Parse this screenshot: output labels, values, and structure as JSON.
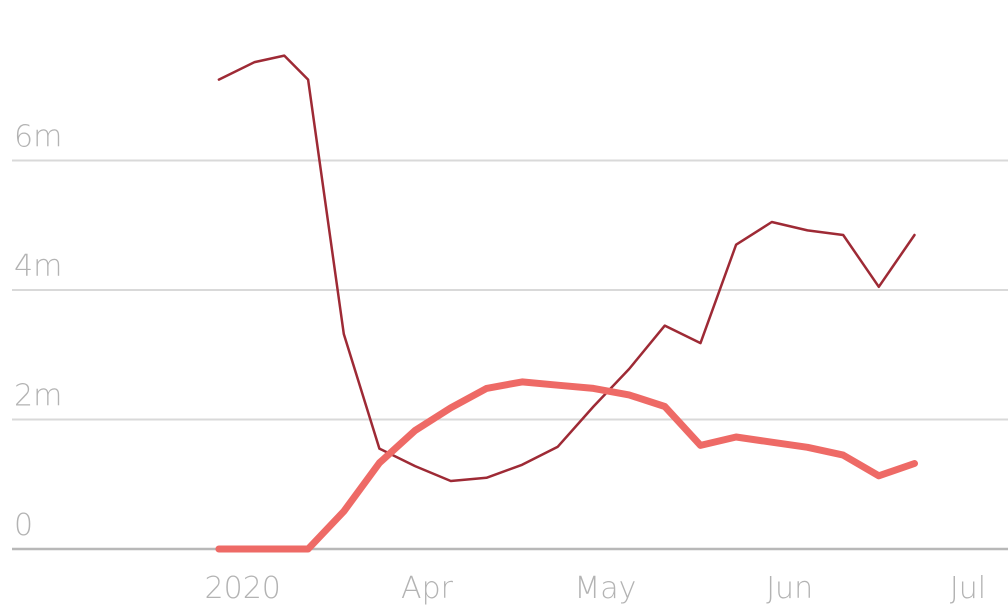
{
  "chart_data": {
    "type": "line",
    "title": "",
    "xlabel": "",
    "ylabel": "",
    "x_ticks": [
      {
        "label": "2020",
        "date": "2020-03-01"
      },
      {
        "label": "Apr",
        "date": "2020-04-01"
      },
      {
        "label": "May",
        "date": "2020-05-01"
      },
      {
        "label": "Jun",
        "date": "2020-06-01"
      },
      {
        "label": "Jul",
        "date": "2020-07-01"
      }
    ],
    "y_ticks": [
      {
        "label": "0",
        "value": 0
      },
      {
        "label": "2m",
        "value": 2000000
      },
      {
        "label": "4m",
        "value": 4000000
      },
      {
        "label": "6m",
        "value": 6000000
      }
    ],
    "ylim": [
      0,
      7600000
    ],
    "grid": true,
    "legend": "none",
    "series": [
      {
        "color": "#9e2a35",
        "style": "thin",
        "points": [
          {
            "date": "2020-02-26",
            "value": 7250000
          },
          {
            "date": "2020-03-03",
            "value": 7520000
          },
          {
            "date": "2020-03-08",
            "value": 7620000
          },
          {
            "date": "2020-03-12",
            "value": 7250000
          },
          {
            "date": "2020-03-18",
            "value": 3320000
          },
          {
            "date": "2020-03-24",
            "value": 1550000
          },
          {
            "date": "2020-03-30",
            "value": 1280000
          },
          {
            "date": "2020-04-05",
            "value": 1050000
          },
          {
            "date": "2020-04-11",
            "value": 1100000
          },
          {
            "date": "2020-04-17",
            "value": 1300000
          },
          {
            "date": "2020-04-23",
            "value": 1580000
          },
          {
            "date": "2020-04-29",
            "value": 2200000
          },
          {
            "date": "2020-05-05",
            "value": 2780000
          },
          {
            "date": "2020-05-11",
            "value": 3450000
          },
          {
            "date": "2020-05-17",
            "value": 3180000
          },
          {
            "date": "2020-05-23",
            "value": 4700000
          },
          {
            "date": "2020-05-29",
            "value": 5050000
          },
          {
            "date": "2020-06-04",
            "value": 4920000
          },
          {
            "date": "2020-06-10",
            "value": 4850000
          },
          {
            "date": "2020-06-16",
            "value": 4050000
          },
          {
            "date": "2020-06-22",
            "value": 4850000
          }
        ]
      },
      {
        "color": "#ee6a66",
        "style": "thick",
        "points": [
          {
            "date": "2020-02-26",
            "value": 0
          },
          {
            "date": "2020-03-03",
            "value": 0
          },
          {
            "date": "2020-03-08",
            "value": 0
          },
          {
            "date": "2020-03-12",
            "value": 0
          },
          {
            "date": "2020-03-18",
            "value": 580000
          },
          {
            "date": "2020-03-24",
            "value": 1330000
          },
          {
            "date": "2020-03-30",
            "value": 1830000
          },
          {
            "date": "2020-04-05",
            "value": 2180000
          },
          {
            "date": "2020-04-11",
            "value": 2480000
          },
          {
            "date": "2020-04-17",
            "value": 2580000
          },
          {
            "date": "2020-04-23",
            "value": 2530000
          },
          {
            "date": "2020-04-29",
            "value": 2480000
          },
          {
            "date": "2020-05-05",
            "value": 2380000
          },
          {
            "date": "2020-05-11",
            "value": 2200000
          },
          {
            "date": "2020-05-17",
            "value": 1600000
          },
          {
            "date": "2020-05-23",
            "value": 1730000
          },
          {
            "date": "2020-05-29",
            "value": 1650000
          },
          {
            "date": "2020-06-04",
            "value": 1570000
          },
          {
            "date": "2020-06-10",
            "value": 1450000
          },
          {
            "date": "2020-06-16",
            "value": 1130000
          },
          {
            "date": "2020-06-22",
            "value": 1320000
          }
        ]
      }
    ]
  }
}
